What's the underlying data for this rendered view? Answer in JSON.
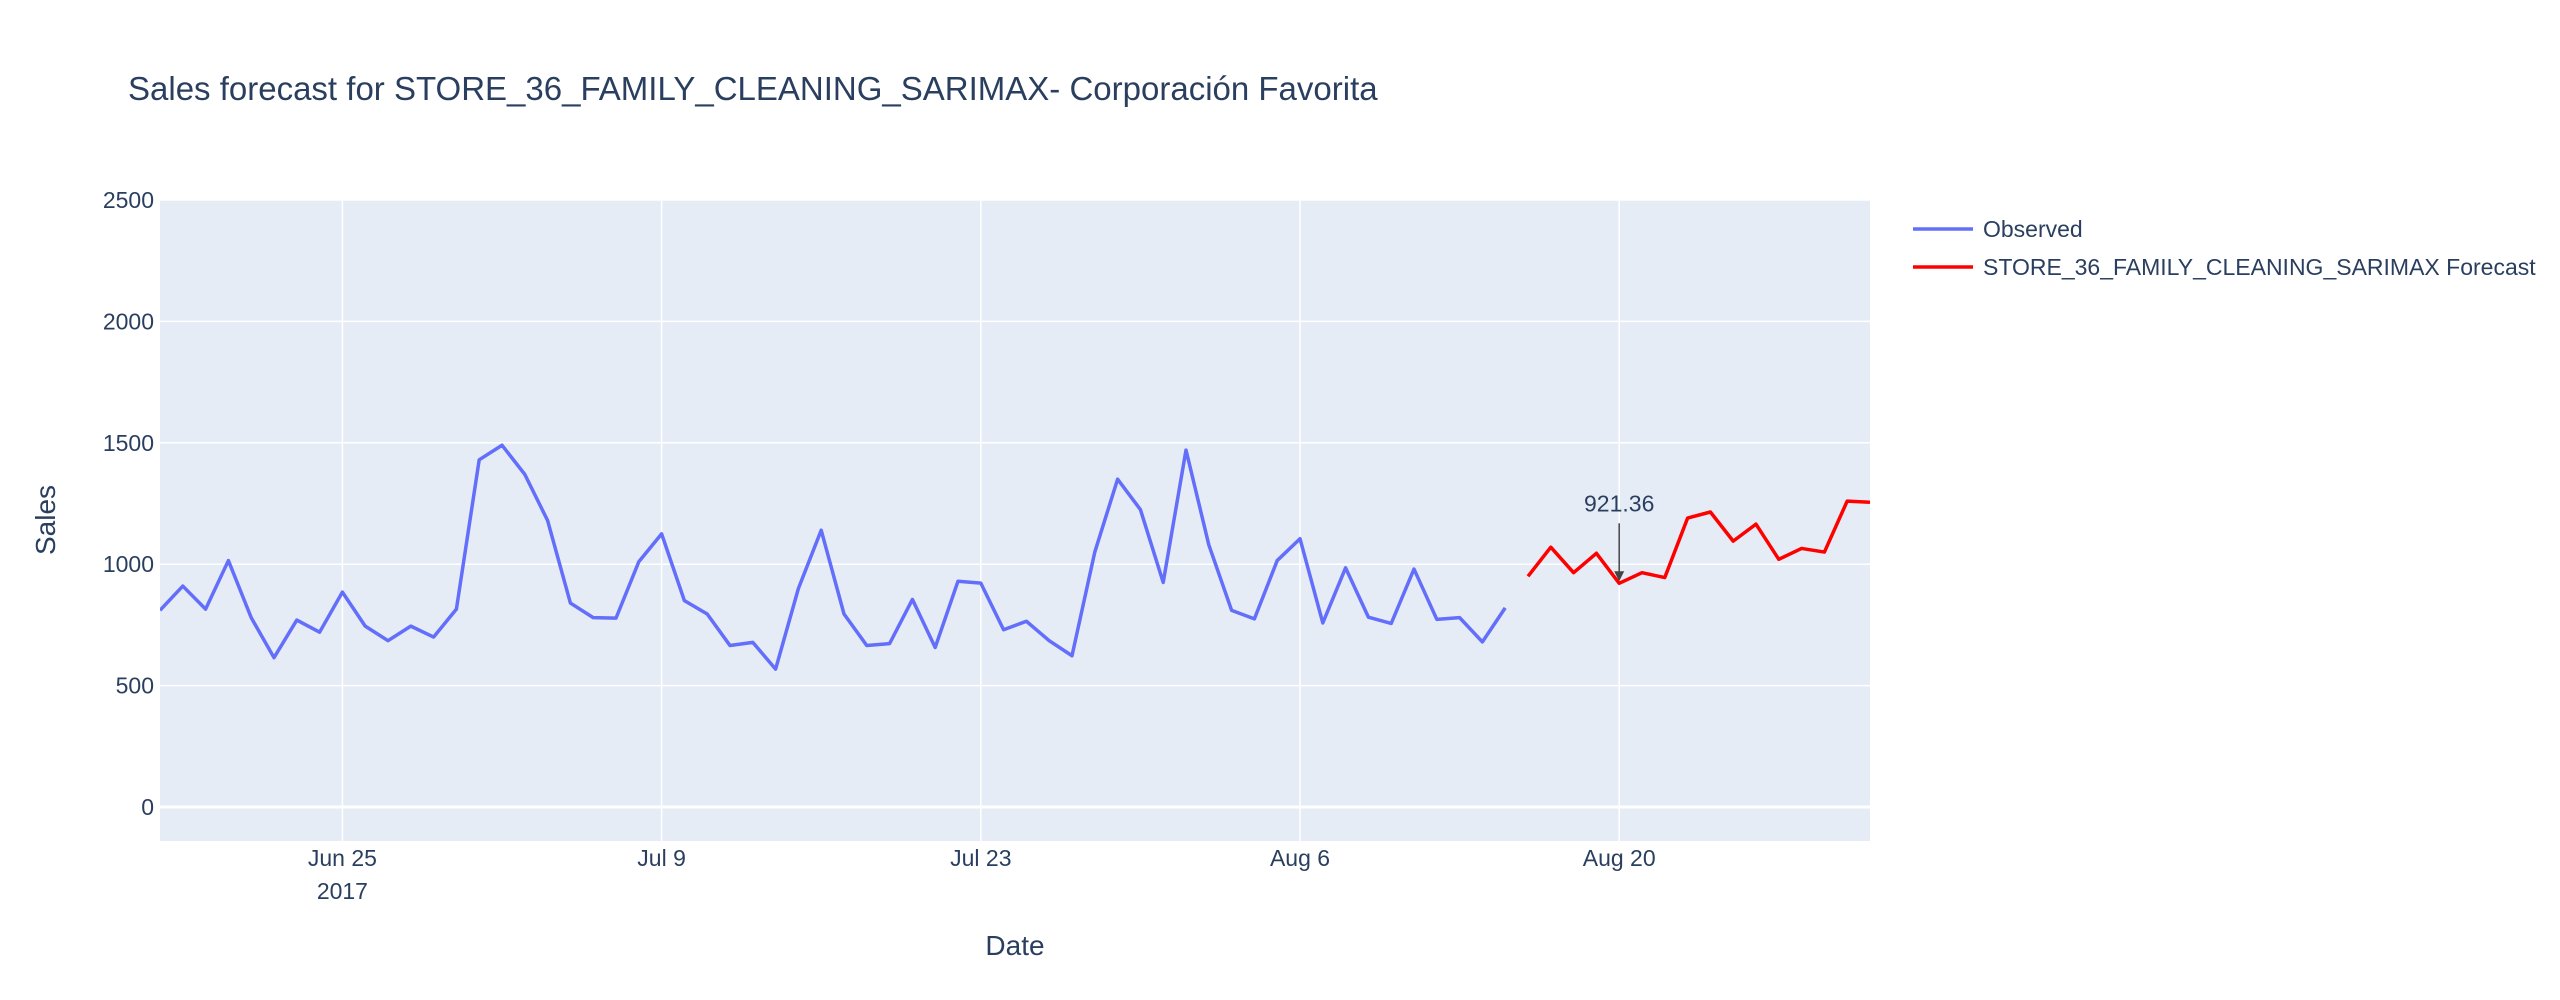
{
  "chart_data": {
    "type": "line",
    "title": "Sales forecast for STORE_36_FAMILY_CLEANING_SARIMAX- Corporación Favorita",
    "xlabel": "Date",
    "ylabel": "Sales",
    "xlim": [
      "2017-06-17",
      "2017-08-31"
    ],
    "ylim": [
      -140,
      2500
    ],
    "y_ticks": [
      0,
      500,
      1000,
      1500,
      2000,
      2500
    ],
    "x_ticks": [
      {
        "date": "2017-06-25",
        "label": "Jun 25",
        "sublabel": "2017"
      },
      {
        "date": "2017-07-09",
        "label": "Jul 9",
        "sublabel": ""
      },
      {
        "date": "2017-07-23",
        "label": "Jul 23",
        "sublabel": ""
      },
      {
        "date": "2017-08-06",
        "label": "Aug 6",
        "sublabel": ""
      },
      {
        "date": "2017-08-20",
        "label": "Aug 20",
        "sublabel": ""
      }
    ],
    "grid": true,
    "legend_position": "right",
    "plot_bgcolor": "#e5ecf6",
    "series": [
      {
        "name": "Observed",
        "color": "#636efa",
        "start_date": "2017-06-17",
        "values": [
          810,
          910,
          815,
          1015,
          780,
          615,
          770,
          720,
          885,
          745,
          685,
          745,
          700,
          815,
          1430,
          1490,
          1370,
          1180,
          840,
          780,
          778,
          1010,
          1125,
          850,
          795,
          665,
          678,
          568,
          900,
          1140,
          795,
          665,
          673,
          855,
          657,
          930,
          922,
          730,
          765,
          685,
          623,
          1050,
          1350,
          1225,
          925,
          1470,
          1080,
          810,
          775,
          1015,
          1105,
          758,
          985,
          782,
          756,
          980,
          773,
          780,
          680,
          820
        ]
      },
      {
        "name": "STORE_36_FAMILY_CLEANING_SARIMAX Forecast",
        "color": "#ff0000",
        "start_date": "2017-08-16",
        "values": [
          950,
          1070,
          965,
          1045,
          921.36,
          965,
          945,
          1190,
          1215,
          1095,
          1165,
          1020,
          1065,
          1050,
          1260,
          1255
        ]
      }
    ],
    "annotations": [
      {
        "date": "2017-08-20",
        "value": 921.36,
        "text": "921.36"
      }
    ]
  }
}
